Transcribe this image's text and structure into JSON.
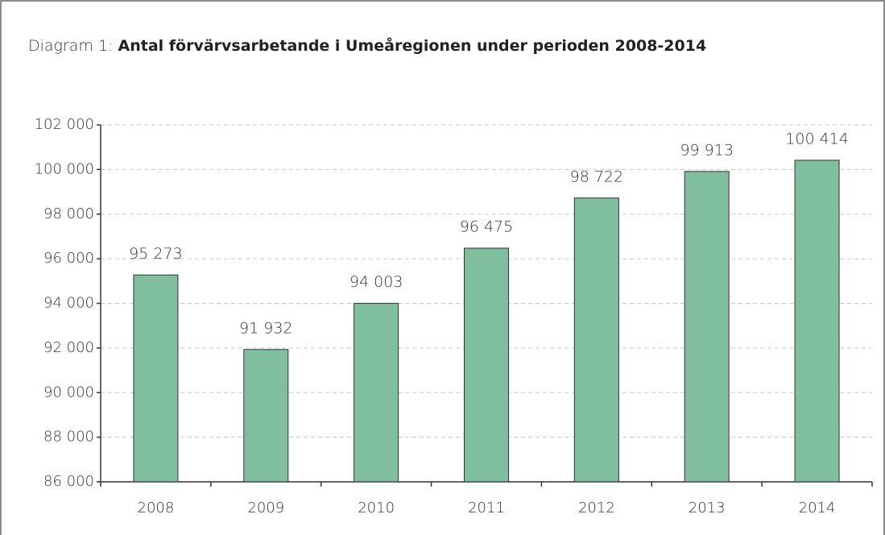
{
  "chart_data": {
    "type": "bar",
    "title_prefix": "Diagram 1:",
    "title": "Antal förvärvsarbetande i Umeåregionen under perioden 2008-2014",
    "categories": [
      "2008",
      "2009",
      "2010",
      "2011",
      "2012",
      "2013",
      "2014"
    ],
    "values": [
      95273,
      91932,
      94003,
      96475,
      98722,
      99913,
      100414
    ],
    "value_labels": [
      "95 273",
      "91 932",
      "94 003",
      "96 475",
      "98 722",
      "99 913",
      "100 414"
    ],
    "color": "#7fbf9f",
    "ylim": [
      86000,
      102000
    ],
    "yticks": [
      {
        "value": 86000,
        "label": "86 000"
      },
      {
        "value": 88000,
        "label": "88 000"
      },
      {
        "value": 90000,
        "label": "90 000"
      },
      {
        "value": 92000,
        "label": "92 000"
      },
      {
        "value": 94000,
        "label": "94 000"
      },
      {
        "value": 96000,
        "label": "96 000"
      },
      {
        "value": 98000,
        "label": "98 000"
      },
      {
        "value": 100000,
        "label": "100 000"
      },
      {
        "value": 102000,
        "label": "102 000"
      }
    ],
    "grid": true
  }
}
